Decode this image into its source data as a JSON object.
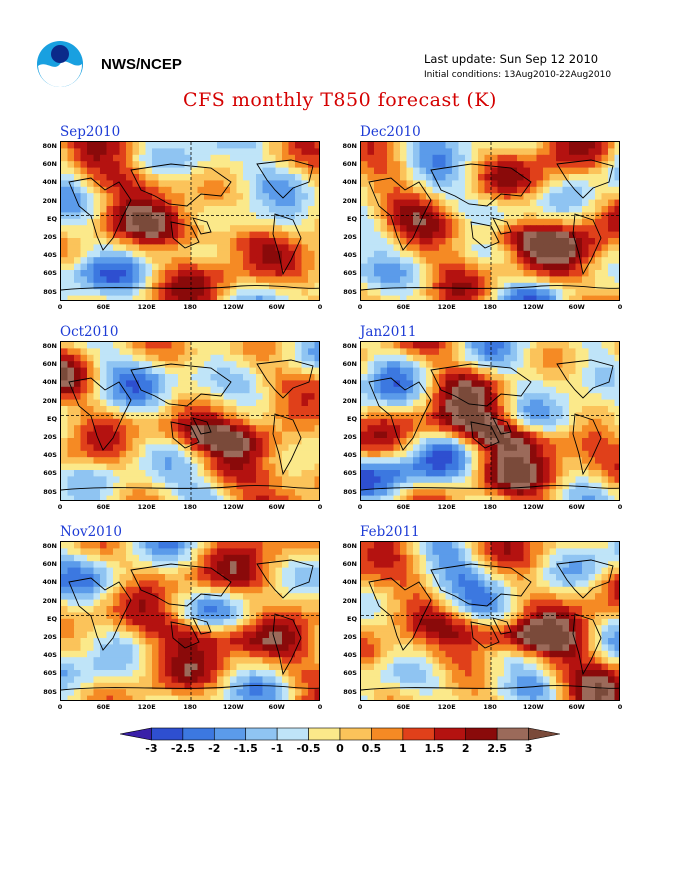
{
  "header": {
    "org": "NWS/NCEP",
    "last_update": "Last update: Sun Sep 12 2010",
    "initial_conditions": "Initial conditions: 13Aug2010-22Aug2010",
    "title": "CFS monthly T850 forecast (K)"
  },
  "logo_icon": "noaa-logo-icon",
  "colors": {
    "title": "#d40000",
    "panel_title": "#1e3cd6",
    "neutral": "#ffffff"
  },
  "lat_labels": [
    "80N",
    "60N",
    "40N",
    "20N",
    "EQ",
    "20S",
    "40S",
    "60S",
    "80S"
  ],
  "lon_labels": [
    "0",
    "60E",
    "120E",
    "180",
    "120W",
    "60W",
    "0"
  ],
  "panels": [
    {
      "title": "Sep2010"
    },
    {
      "title": "Dec2010"
    },
    {
      "title": "Oct2010"
    },
    {
      "title": "Jan2011"
    },
    {
      "title": "Nov2010"
    },
    {
      "title": "Feb2011"
    }
  ],
  "colorbar": {
    "labels": [
      "-3",
      "-2.5",
      "-2",
      "-1.5",
      "-1",
      "-0.5",
      "0",
      "0.5",
      "1",
      "1.5",
      "2",
      "2.5",
      "3"
    ],
    "colors": [
      "#3a1fa8",
      "#2e4fd0",
      "#3c78e0",
      "#5b9bea",
      "#8fc4f2",
      "#bfe4f8",
      "#fbe98a",
      "#fbc35a",
      "#f58a24",
      "#e0401a",
      "#b41210",
      "#8a0a0a",
      "#9b6a5a",
      "#7a4a3a"
    ]
  }
}
